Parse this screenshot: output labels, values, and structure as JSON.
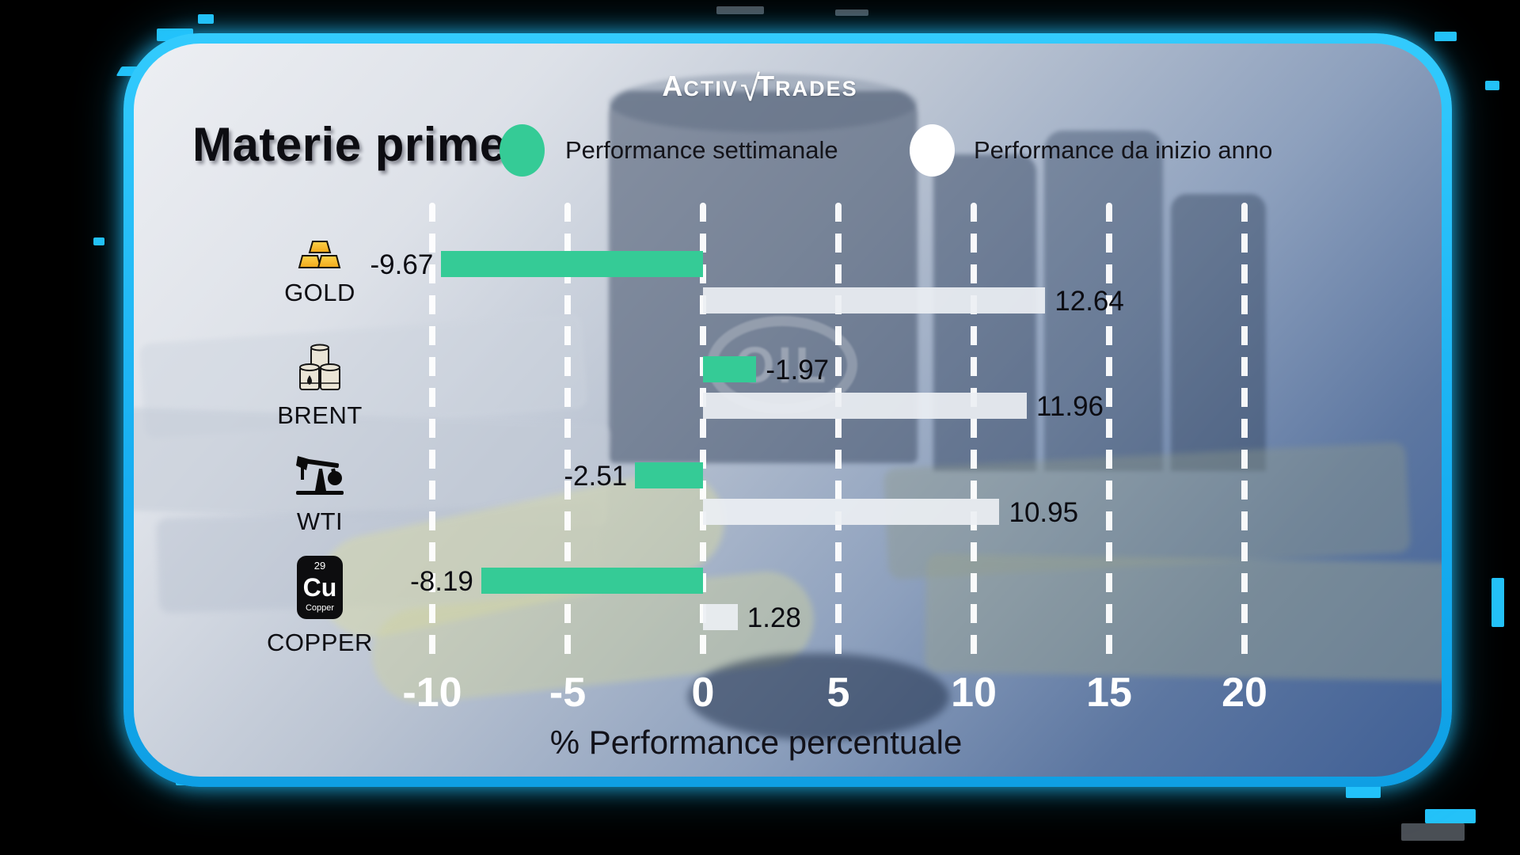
{
  "logo": {
    "a": "A",
    "ctiv": "CTIV",
    "check": "√",
    "t": "T",
    "rades": "RADES",
    "alt": "ActivTrades"
  },
  "title": "Materie prime",
  "legend": [
    {
      "label": "Performance settimanale",
      "color": "#35cb96"
    },
    {
      "label": "Performance da inizio anno",
      "color": "#ffffff"
    }
  ],
  "background": {
    "watermark": "OIL"
  },
  "colors": {
    "accent_green": "#35cb96",
    "bar_white": "#eceff3",
    "border_cyan": "#1db4f2",
    "grid_white": "#ffffff"
  },
  "chart_data": {
    "type": "bar",
    "orientation": "horizontal",
    "title": "Materie prime",
    "xlabel": "% Performance percentuale",
    "xticks": [
      -10,
      -5,
      0,
      5,
      10,
      15,
      20
    ],
    "xlim": [
      -12.6,
      24.2
    ],
    "grid": "dashed-vertical-white",
    "legend_position": "top",
    "categories": [
      {
        "name": "GOLD",
        "icon": "gold-bars-icon"
      },
      {
        "name": "BRENT",
        "icon": "oil-barrels-icon"
      },
      {
        "name": "WTI",
        "icon": "oil-pumpjack-icon"
      },
      {
        "name": "COPPER",
        "icon": "copper-element-icon"
      }
    ],
    "series": [
      {
        "name": "Performance settimanale",
        "color": "#35cb96",
        "values": [
          -9.67,
          -1.97,
          -2.51,
          -8.19
        ],
        "drawn_side": [
          "left",
          "right",
          "left",
          "left"
        ],
        "label_side": [
          "left",
          "right",
          "left",
          "left"
        ]
      },
      {
        "name": "Performance da inizio anno",
        "color": "#eceff3",
        "values": [
          12.64,
          11.96,
          10.95,
          1.28
        ],
        "drawn_side": [
          "right",
          "right",
          "right",
          "right"
        ],
        "label_side": [
          "right",
          "right",
          "right",
          "right"
        ]
      }
    ]
  }
}
